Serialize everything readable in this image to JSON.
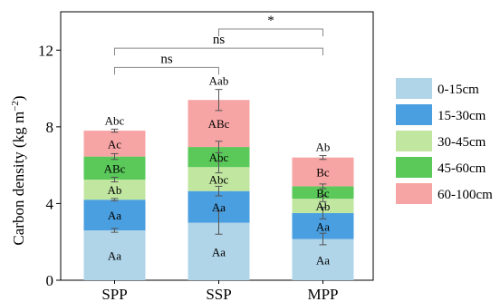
{
  "chart_data": {
    "type": "bar",
    "stacked": true,
    "ylabel_main": "Carbon density (kg m",
    "ylabel_sup": "−2",
    "ylabel_close": ")",
    "xlabel": "",
    "ylim": [
      0,
      14
    ],
    "yticks": [
      0,
      4,
      8,
      12
    ],
    "categories": [
      "SPP",
      "SSP",
      "MPP"
    ],
    "series": [
      {
        "name": "0-15cm",
        "color": "#b0d4e8",
        "values": [
          2.6,
          3.0,
          2.15
        ],
        "errors": [
          0.1,
          0.6,
          0.3
        ],
        "labels": [
          "Aa",
          "Aa",
          "Aa"
        ]
      },
      {
        "name": "15-30cm",
        "color": "#4a9fe0",
        "values": [
          1.6,
          1.65,
          1.35
        ],
        "errors": [
          0.06,
          0.25,
          0.3
        ],
        "labels": [
          "Aa",
          "Aa",
          "Aa"
        ]
      },
      {
        "name": "30-45cm",
        "color": "#c0e6a0",
        "values": [
          1.05,
          1.25,
          0.75
        ],
        "errors": [
          0.12,
          0.3,
          0.15
        ],
        "labels": [
          "Ab",
          "Abc",
          "Ab"
        ]
      },
      {
        "name": "45-60cm",
        "color": "#5ac95a",
        "values": [
          1.2,
          1.05,
          0.65
        ],
        "errors": [
          0.15,
          0.3,
          0.12
        ],
        "labels": [
          "ABc",
          "Abc",
          "Bc"
        ]
      },
      {
        "name": "60-100cm",
        "color": "#f7a4a4",
        "values": [
          1.35,
          2.45,
          1.5
        ],
        "errors": [
          0.08,
          0.55,
          0.1
        ],
        "labels": [
          "Ac",
          "ABc",
          "Bc"
        ]
      }
    ],
    "total_labels": [
      "Abc",
      "Aab",
      "Ab"
    ],
    "significance": [
      {
        "from": "SPP",
        "to": "SSP",
        "label": "ns"
      },
      {
        "from": "SPP",
        "to": "MPP",
        "label": "ns"
      },
      {
        "from": "SSP",
        "to": "MPP",
        "label": "*"
      }
    ],
    "legend_position": "right",
    "grid": false
  }
}
